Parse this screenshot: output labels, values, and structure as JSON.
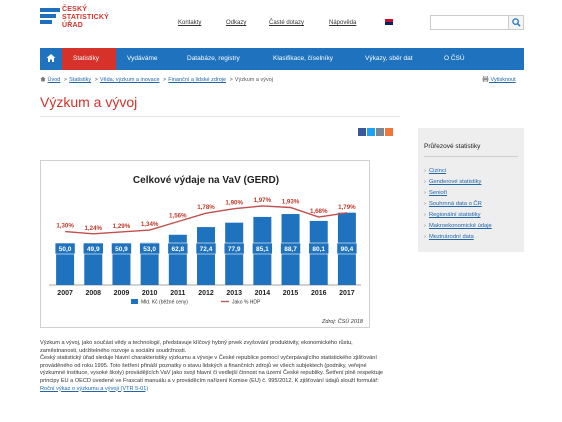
{
  "logo": {
    "lines": [
      "ČESKÝ",
      "STATISTICKÝ",
      "ÚŘAD"
    ]
  },
  "top_links": [
    "Kontakty",
    "Odkazy",
    "Časté dotazy",
    "Nápověda"
  ],
  "nav": {
    "items": [
      "Statistiky",
      "Vydáváme",
      "Databáze, registry",
      "Klasifikace, číselníky",
      "Výkazy, sběr dat",
      "O ČSÚ"
    ],
    "active": "Statistiky"
  },
  "breadcrumb": {
    "items": [
      "Úvod",
      "Statistiky",
      "Věda, výzkum a inovace",
      "Finanční a lidské zdroje",
      "Výzkum a vývoj"
    ],
    "print_label": "Vytisknout"
  },
  "page_title": "Výzkum a vývoj",
  "sidebar": {
    "title": "Průřezové statistiky",
    "items": [
      "Cizinci",
      "Genderové statistiky",
      "Senioři",
      "Souhrnná data o ČR",
      "Regionální statistiky",
      "Makroekonomické údaje",
      "Mezinárodní data"
    ]
  },
  "chart_data": {
    "type": "bar",
    "title": "Celkové výdaje na VaV (GERD)",
    "categories": [
      "2007",
      "2008",
      "2009",
      "2010",
      "2011",
      "2012",
      "2013",
      "2014",
      "2015",
      "2016",
      "2017"
    ],
    "series": [
      {
        "name": "Mld. Kč (běžné ceny)",
        "type": "bar",
        "values": [
          50.0,
          49.9,
          50.9,
          53.0,
          62.8,
          72.4,
          77.9,
          85.1,
          88.7,
          80.1,
          90.4
        ],
        "labels": [
          "50,0",
          "49,9",
          "50,9",
          "53,0",
          "62,8",
          "72,4",
          "77,9",
          "85,1",
          "88,7",
          "80,1",
          "90,4"
        ]
      },
      {
        "name": "Jako % HDP",
        "type": "line",
        "values": [
          1.3,
          1.24,
          1.29,
          1.34,
          1.56,
          1.78,
          1.9,
          1.97,
          1.93,
          1.68,
          1.79
        ],
        "labels": [
          "1,30%",
          "1,24%",
          "1,29%",
          "1,34%",
          "1,56%",
          "1,78%",
          "1,90%",
          "1,97%",
          "1,93%",
          "1,68%",
          "1,79%"
        ]
      }
    ],
    "source": "Zdroj: ČSÚ 2018",
    "legend_position": "bottom",
    "colors": {
      "bar": "#1f73be",
      "line": "#c0504d",
      "bar_label_bg": "#1f73be"
    }
  },
  "body": {
    "p1": "Výzkum a vývoj, jako součást vědy a technologií, představuje klíčový hybný prvek zvyšování produktivity, ekonomického růstu, zaměstnanosti, udržitelného rozvoje a sociální soudržnosti.",
    "p2": "Český statistický úřad sleduje hlavní charakteristiky výzkumu a vývoje v České republice pomocí vyčerpávajícího statistického zjišťování prováděného od roku 1995. Toto šetření přináší poznatky o stavu lidských a finančních zdrojů ve všech subjektech (podniky, veřejné výzkumné instituce, vysoké školy) provádějících VaV jako svoji hlavní či vedlejší činnost na území České republiky. Šetření plně respektuje principy EU a OECD uvedené ve Frascati manuálu a v prováděcím nařízení Komise (EU) č. 995/2012. K zjišťování údajů slouží formulář:",
    "link": "Roční výkaz o výzkumu a vývoji (VTR 5-01)"
  },
  "colors": {
    "brand_blue": "#1f73be",
    "brand_red": "#d6322a",
    "link": "#2266aa"
  }
}
